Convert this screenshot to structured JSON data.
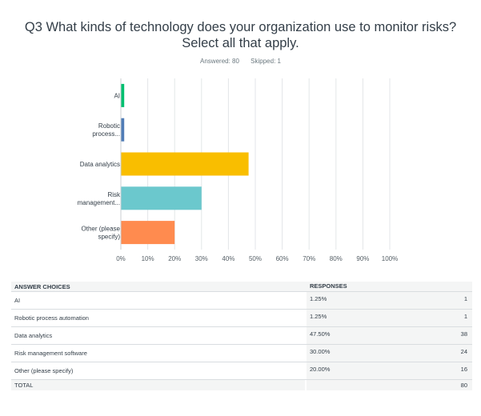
{
  "question": {
    "line1": "Q3 What kinds of technology does your organization use to monitor risks?",
    "line2": "Select all that apply.",
    "answered": "Answered: 80",
    "skipped": "Skipped: 1"
  },
  "chart_data": {
    "type": "bar",
    "orientation": "horizontal",
    "categories": [
      [
        "AI"
      ],
      [
        "Robotic",
        "process..."
      ],
      [
        "Data analytics"
      ],
      [
        "Risk",
        "management..."
      ],
      [
        "Other (please",
        "specify)"
      ]
    ],
    "values": [
      1.25,
      1.25,
      47.5,
      30.0,
      20.0
    ],
    "colors": [
      "#00bf6f",
      "#507cb6",
      "#f9be00",
      "#6bc8cd",
      "#ff8b4f"
    ],
    "xlim": [
      0,
      100
    ],
    "xticks": [
      "0%",
      "10%",
      "20%",
      "30%",
      "40%",
      "50%",
      "60%",
      "70%",
      "80%",
      "90%",
      "100%"
    ],
    "grid": true
  },
  "table": {
    "headers": {
      "choices": "ANSWER CHOICES",
      "responses": "RESPONSES"
    },
    "rows": [
      {
        "choice": "AI",
        "percent": "1.25%",
        "count": "1"
      },
      {
        "choice": "Robotic process automation",
        "percent": "1.25%",
        "count": "1"
      },
      {
        "choice": "Data analytics",
        "percent": "47.50%",
        "count": "38"
      },
      {
        "choice": "Risk management software",
        "percent": "30.00%",
        "count": "24"
      },
      {
        "choice": "Other (please specify)",
        "percent": "20.00%",
        "count": "16"
      }
    ],
    "total_label": "TOTAL",
    "total_count": "80"
  }
}
